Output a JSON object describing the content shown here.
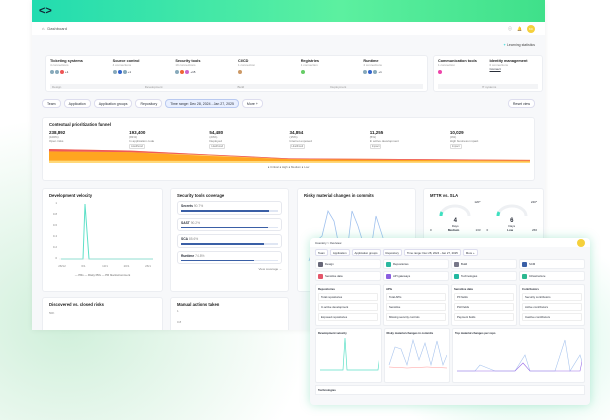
{
  "header": {
    "breadcrumb": "Dashboard",
    "avatar": "KC",
    "learning": "Learning statistics"
  },
  "integrations": [
    {
      "name": "Ticketing systems",
      "sub": "4 connections",
      "more": "+1"
    },
    {
      "name": "Source control",
      "sub": "4 connections",
      "more": "+1"
    },
    {
      "name": "Security tools",
      "sub": "19 connections",
      "more": "+15"
    },
    {
      "name": "CI/CD",
      "sub": "1 connection",
      "more": ""
    },
    {
      "name": "Registries",
      "sub": "1 connection",
      "more": ""
    },
    {
      "name": "Runtime",
      "sub": "4 connections",
      "more": "+1"
    }
  ],
  "phases": [
    "Design",
    "Development",
    "Build",
    "Deployment"
  ],
  "integrations2": [
    {
      "name": "Communication tools",
      "sub": "1 connection"
    },
    {
      "name": "Identity management",
      "sub": "0 connections",
      "more": "Connect"
    }
  ],
  "phase2": "IT systems",
  "filters": [
    "Team",
    "Application",
    "Application groups",
    "Repository",
    "Time range: Dec 28, 2024 - Jan 27, 2025",
    "More +"
  ],
  "reset": "Reset view",
  "funnel": {
    "title": "Contextual prioritization funnel",
    "stages": [
      {
        "value": "238,892",
        "pct": "(100%)",
        "label": "Open risks",
        "tag": ""
      },
      {
        "value": "193,400",
        "pct": "(81%)",
        "label": "In application code",
        "tag": "Likelihood"
      },
      {
        "value": "54,480",
        "pct": "(23%)",
        "label": "Deployed",
        "tag": "Likelihood"
      },
      {
        "value": "34,854",
        "pct": "(15%)",
        "label": "Internet exposed",
        "tag": "Likelihood"
      },
      {
        "value": "11,255",
        "pct": "(5%)",
        "label": "In active development",
        "tag": "Impact"
      },
      {
        "value": "10,029",
        "pct": "(4%)",
        "label": "High business impact",
        "tag": "Impact"
      }
    ],
    "legend": "● Critical ● High ● Medium ● Low"
  },
  "velocity": {
    "title": "Development velocity",
    "yticks": [
      "1",
      "0.8",
      "0.6",
      "0.4",
      "0.2",
      "0"
    ],
    "xticks": [
      "28/12",
      "6/1",
      "13/1",
      "20/1",
      "26/1"
    ],
    "legend": "— PRs  — Risky PRs  — PR blocks/comment"
  },
  "coverage": {
    "title": "Security tools coverage",
    "items": [
      {
        "label": "Secrets",
        "pct": "90.7%",
        "v": 90.7
      },
      {
        "label": "SAST",
        "pct": "90.2%",
        "v": 90.2
      },
      {
        "label": "SCA",
        "pct": "85.6%",
        "v": 85.6
      },
      {
        "label": "Runtime",
        "pct": "74.8%",
        "v": 74.8
      }
    ],
    "link": "View coverage →"
  },
  "risky": {
    "title": "Risky material changes in commits",
    "yticks": [
      "300",
      "250",
      "200",
      "150",
      "100"
    ]
  },
  "mttr": {
    "title": "MTTR vs. SLA",
    "gauges": [
      {
        "value": "4",
        "unit": "Days",
        "level": "Medium",
        "min": "0",
        "max": "133",
        "sla": "120*"
      },
      {
        "value": "6",
        "unit": "Days",
        "level": "Low",
        "min": "0",
        "max": "266",
        "sla": "240*"
      }
    ]
  },
  "discovered": {
    "title": "Discovered vs. closed risks",
    "ytick": "50K"
  },
  "manual": {
    "title": "Manual actions taken",
    "yticks": [
      "1",
      "0.8"
    ]
  },
  "overlay": {
    "breadcrumb": "Inventory > Overview",
    "filters": [
      "Team",
      "Application",
      "Application groups",
      "Repository",
      "Time range: Dec 28, 2024 - Jan 27, 2025",
      "More +"
    ],
    "tiles": [
      "Design",
      "Repositories",
      "Build",
      "SCM",
      "Sensitive data",
      "API gateways",
      "Technologies",
      "Infrastructure"
    ],
    "cards": [
      {
        "title": "Repositories",
        "rows": [
          "Total repositories",
          "In active development",
          "Exposed repositories"
        ]
      },
      {
        "title": "APIs",
        "rows": [
          "Total APIs",
          "Sensitive",
          "Missing security controls"
        ]
      },
      {
        "title": "Sensitive data",
        "rows": [
          "PII fields",
          "PHI fields",
          "Payment fields"
        ]
      },
      {
        "title": "Contributors",
        "rows": [
          "Security contributors",
          "Active contributors",
          "Inactive contributors"
        ]
      }
    ],
    "charts": [
      "Development velocity",
      "Risky material changes in commits",
      "Top material changes per repo"
    ],
    "bottom": "Technologies"
  },
  "colors": {
    "accent": "#2fe0a0",
    "bar": "#3a5fa6",
    "critical": "#d0204a",
    "high": "#ef5a5a",
    "medium": "#ffa51f",
    "low": "#ffd97a"
  }
}
